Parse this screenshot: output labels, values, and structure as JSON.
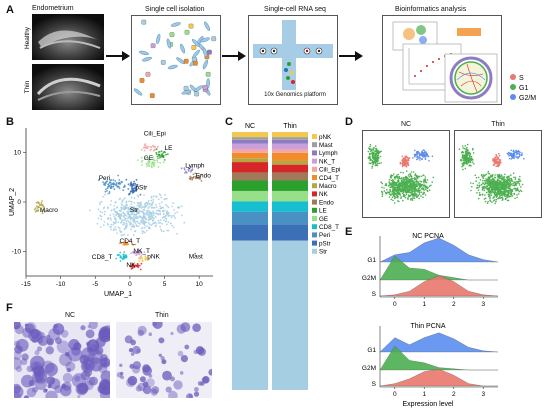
{
  "panels": {
    "A": {
      "label": "A",
      "endometrium": "Endometrium",
      "healthy": "Healthy",
      "thin": "Thin",
      "isolation": "Single cell isolation",
      "rnaseq": "Single-cell RNA seq",
      "platform": "10x Genomics platform",
      "bioinfo": "Bioinformatics analysis",
      "phase_legend": [
        {
          "name": "S",
          "color": "#e9786e"
        },
        {
          "name": "G1",
          "color": "#4caf50"
        },
        {
          "name": "G2/M",
          "color": "#5b8def"
        }
      ]
    },
    "B": {
      "label": "B",
      "ylabel": "UMAP_2",
      "xlabel": "UMAP_1",
      "xticks": [
        "-15",
        "-10",
        "-5",
        "0",
        "5",
        "10"
      ],
      "yticks": [
        "10",
        "0",
        "-10"
      ],
      "clusters": [
        {
          "name": "Cili_Epi"
        },
        {
          "name": "LE"
        },
        {
          "name": "GE"
        },
        {
          "name": "Lymph"
        },
        {
          "name": "Endo"
        },
        {
          "name": "Peri"
        },
        {
          "name": "pStr"
        },
        {
          "name": "Macro"
        },
        {
          "name": "Str"
        },
        {
          "name": "CD4_T"
        },
        {
          "name": "NK_T"
        },
        {
          "name": "CD8_T"
        },
        {
          "name": "pNK"
        },
        {
          "name": "NK"
        },
        {
          "name": "Mast"
        }
      ]
    },
    "C": {
      "label": "C",
      "col1": "NC",
      "col2": "Thin",
      "legend": [
        {
          "name": "pNK",
          "color": "#f2c94c"
        },
        {
          "name": "Mast",
          "color": "#9e9e9e"
        },
        {
          "name": "Lymph",
          "color": "#8e7cc3"
        },
        {
          "name": "NK_T",
          "color": "#c9a0dc"
        },
        {
          "name": "Cili_Epi",
          "color": "#f4a6a6"
        },
        {
          "name": "CD4_T",
          "color": "#f28c28"
        },
        {
          "name": "Macro",
          "color": "#b5a642"
        },
        {
          "name": "NK",
          "color": "#d62728"
        },
        {
          "name": "Endo",
          "color": "#a0785a"
        },
        {
          "name": "LE",
          "color": "#2ca02c"
        },
        {
          "name": "GE",
          "color": "#98df8a"
        },
        {
          "name": "CD8_T",
          "color": "#17becf"
        },
        {
          "name": "Peri",
          "color": "#4a90c2"
        },
        {
          "name": "pStr",
          "color": "#3b6fb6"
        },
        {
          "name": "Str",
          "color": "#a6cee3"
        }
      ]
    },
    "D": {
      "label": "D",
      "nc": "NC",
      "thin": "Thin"
    },
    "E": {
      "label": "E",
      "title1": "NC   PCNA",
      "title2": "Thin   PCNA",
      "rows": [
        "G1",
        "G2M",
        "S"
      ],
      "xticks": [
        "0",
        "1",
        "2",
        "3"
      ],
      "xlabel": "Expression level"
    },
    "F": {
      "label": "F",
      "nc": "NC",
      "thin": "Thin"
    }
  },
  "chart_data": [
    {
      "type": "bar",
      "title": "",
      "categories": [
        "NC",
        "Thin"
      ],
      "stacking": "stacked",
      "series": [
        {
          "name": "pNK",
          "values": [
            2,
            2
          ]
        },
        {
          "name": "Mast",
          "values": [
            1,
            1
          ]
        },
        {
          "name": "Lymph",
          "values": [
            1.5,
            1.5
          ]
        },
        {
          "name": "NK_T",
          "values": [
            2,
            2
          ]
        },
        {
          "name": "Cili_Epi",
          "values": [
            1.5,
            1.5
          ]
        },
        {
          "name": "CD4_T",
          "values": [
            2,
            3
          ]
        },
        {
          "name": "Macro",
          "values": [
            1.5,
            1.5
          ]
        },
        {
          "name": "NK",
          "values": [
            4,
            3
          ]
        },
        {
          "name": "Endo",
          "values": [
            3,
            3
          ]
        },
        {
          "name": "LE",
          "values": [
            4,
            4
          ]
        },
        {
          "name": "GE",
          "values": [
            4,
            4
          ]
        },
        {
          "name": "CD8_T",
          "values": [
            4,
            4
          ]
        },
        {
          "name": "Peri",
          "values": [
            5,
            5
          ]
        },
        {
          "name": "pStr",
          "values": [
            6,
            6
          ]
        },
        {
          "name": "Str",
          "values": [
            57,
            57
          ]
        }
      ]
    },
    {
      "type": "area",
      "title": "NC   PCNA",
      "xlabel": "Expression level",
      "xlim": [
        -0.5,
        3.5
      ],
      "series": [
        {
          "name": "G1",
          "x": [
            -0.5,
            0,
            0.5,
            1,
            1.5,
            2,
            2.5,
            3,
            3.5
          ],
          "values": [
            0,
            0.3,
            0.4,
            0.8,
            1,
            0.7,
            0.3,
            0.1,
            0
          ]
        },
        {
          "name": "G2M",
          "x": [
            -0.5,
            0,
            0.5,
            1,
            1.5,
            2,
            2.5,
            3,
            3.5
          ],
          "values": [
            0,
            1,
            0.5,
            0.45,
            0.2,
            0.1,
            0,
            0,
            0
          ]
        },
        {
          "name": "S",
          "x": [
            -0.5,
            0,
            0.5,
            1,
            1.5,
            2,
            2.5,
            3,
            3.5
          ],
          "values": [
            0,
            0.05,
            0.2,
            0.6,
            0.85,
            0.6,
            0.2,
            0.05,
            0
          ]
        }
      ]
    },
    {
      "type": "area",
      "title": "Thin   PCNA",
      "xlabel": "Expression level",
      "xlim": [
        -0.5,
        3.5
      ],
      "series": [
        {
          "name": "G1",
          "x": [
            -0.5,
            0,
            0.5,
            1,
            1.5,
            2,
            2.5,
            3,
            3.5
          ],
          "values": [
            0,
            0.6,
            0.3,
            0.6,
            0.8,
            0.55,
            0.2,
            0.05,
            0
          ]
        },
        {
          "name": "G2M",
          "x": [
            -0.5,
            0,
            0.5,
            1,
            1.5,
            2,
            2.5,
            3,
            3.5
          ],
          "values": [
            0,
            1,
            0.4,
            0.3,
            0.1,
            0.05,
            0,
            0,
            0
          ]
        },
        {
          "name": "S",
          "x": [
            -0.5,
            0,
            0.5,
            1,
            1.5,
            2,
            2.5,
            3,
            3.5
          ],
          "values": [
            0,
            0.1,
            0.3,
            0.6,
            0.7,
            0.45,
            0.1,
            0,
            0
          ]
        }
      ]
    }
  ]
}
